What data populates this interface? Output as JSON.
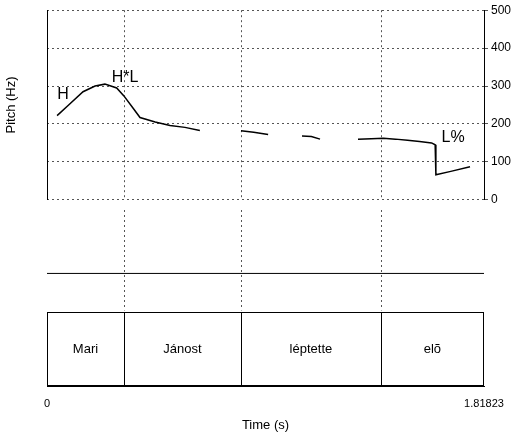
{
  "chart_data": {
    "type": "line",
    "x_label": "Time (s)",
    "y_label": "Pitch (Hz)",
    "x": [
      0.042,
      0.09,
      0.15,
      0.2,
      0.241,
      0.29,
      0.32,
      0.36,
      0.387,
      0.45,
      0.512,
      0.574,
      0.636,
      0.72,
      0.807,
      0.86,
      0.92,
      0.99,
      1.061,
      1.1,
      1.136,
      1.21,
      1.294,
      1.35,
      1.4,
      1.45,
      1.5,
      1.55,
      1.6,
      1.615,
      1.618,
      1.68,
      1.76
    ],
    "values": [
      222,
      250,
      285,
      300,
      305,
      295,
      274,
      240,
      217,
      205,
      196,
      191,
      183,
      null,
      182,
      178,
      172,
      null,
      168,
      167,
      160,
      null,
      160,
      161,
      162,
      160,
      157,
      154,
      150,
      145,
      66,
      75,
      87
    ],
    "color": "#000000",
    "xlim": [
      0,
      1.81823
    ],
    "xticks": [
      0,
      1.81823
    ],
    "ylim": [
      0,
      500
    ],
    "yticks": [
      0,
      100,
      200,
      300,
      400,
      500
    ],
    "grid": true,
    "annotations": [
      {
        "text": "H",
        "x": 0.067,
        "y": 277
      },
      {
        "text": "H*L",
        "x": 0.325,
        "y": 321
      },
      {
        "text": "L%",
        "x": 1.69,
        "y": 165
      }
    ],
    "words": [
      {
        "label": "Mari",
        "start": 0,
        "end": 0.32
      },
      {
        "label": "Jánost",
        "start": 0.32,
        "end": 0.807
      },
      {
        "label": "léptette",
        "start": 0.807,
        "end": 1.389
      },
      {
        "label": "elõ",
        "start": 1.389,
        "end": 1.81823
      }
    ]
  }
}
